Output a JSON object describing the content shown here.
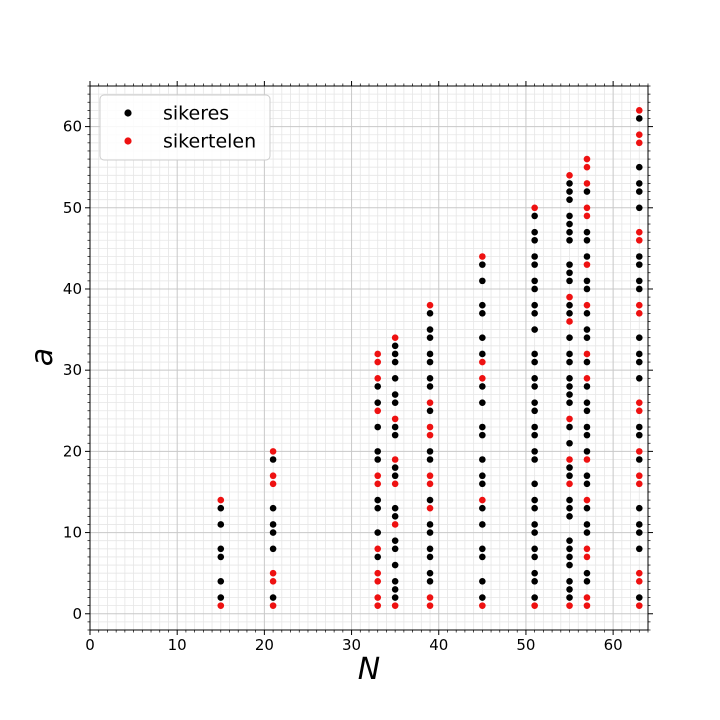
{
  "chart_data": {
    "type": "scatter",
    "xlabel": "N",
    "ylabel": "a",
    "xlim": [
      0,
      64
    ],
    "ylim": [
      -2,
      65
    ],
    "x_ticks": [
      0,
      10,
      20,
      30,
      40,
      50,
      60
    ],
    "y_ticks": [
      0,
      10,
      20,
      30,
      40,
      50,
      60
    ],
    "grid": true,
    "minor_grid": true,
    "legend_position": "top-left",
    "series": [
      {
        "name": "sikeres",
        "color": "#000000",
        "points": [
          [
            15,
            2
          ],
          [
            15,
            4
          ],
          [
            15,
            7
          ],
          [
            15,
            8
          ],
          [
            15,
            11
          ],
          [
            15,
            13
          ],
          [
            21,
            2
          ],
          [
            21,
            8
          ],
          [
            21,
            10
          ],
          [
            21,
            11
          ],
          [
            21,
            13
          ],
          [
            21,
            19
          ],
          [
            33,
            7
          ],
          [
            33,
            10
          ],
          [
            33,
            13
          ],
          [
            33,
            14
          ],
          [
            33,
            19
          ],
          [
            33,
            20
          ],
          [
            33,
            23
          ],
          [
            33,
            26
          ],
          [
            33,
            28
          ],
          [
            35,
            2
          ],
          [
            35,
            3
          ],
          [
            35,
            4
          ],
          [
            35,
            6
          ],
          [
            35,
            8
          ],
          [
            35,
            9
          ],
          [
            35,
            12
          ],
          [
            35,
            13
          ],
          [
            35,
            17
          ],
          [
            35,
            18
          ],
          [
            35,
            22
          ],
          [
            35,
            23
          ],
          [
            35,
            26
          ],
          [
            35,
            27
          ],
          [
            35,
            29
          ],
          [
            35,
            31
          ],
          [
            35,
            32
          ],
          [
            35,
            33
          ],
          [
            39,
            4
          ],
          [
            39,
            5
          ],
          [
            39,
            7
          ],
          [
            39,
            8
          ],
          [
            39,
            10
          ],
          [
            39,
            11
          ],
          [
            39,
            14
          ],
          [
            39,
            19
          ],
          [
            39,
            20
          ],
          [
            39,
            25
          ],
          [
            39,
            28
          ],
          [
            39,
            29
          ],
          [
            39,
            31
          ],
          [
            39,
            32
          ],
          [
            39,
            34
          ],
          [
            39,
            35
          ],
          [
            39,
            37
          ],
          [
            45,
            2
          ],
          [
            45,
            4
          ],
          [
            45,
            7
          ],
          [
            45,
            8
          ],
          [
            45,
            11
          ],
          [
            45,
            13
          ],
          [
            45,
            16
          ],
          [
            45,
            17
          ],
          [
            45,
            19
          ],
          [
            45,
            22
          ],
          [
            45,
            23
          ],
          [
            45,
            26
          ],
          [
            45,
            28
          ],
          [
            45,
            32
          ],
          [
            45,
            34
          ],
          [
            45,
            37
          ],
          [
            45,
            38
          ],
          [
            45,
            41
          ],
          [
            45,
            43
          ],
          [
            51,
            2
          ],
          [
            51,
            4
          ],
          [
            51,
            5
          ],
          [
            51,
            7
          ],
          [
            51,
            8
          ],
          [
            51,
            10
          ],
          [
            51,
            11
          ],
          [
            51,
            13
          ],
          [
            51,
            14
          ],
          [
            51,
            16
          ],
          [
            51,
            19
          ],
          [
            51,
            20
          ],
          [
            51,
            22
          ],
          [
            51,
            23
          ],
          [
            51,
            25
          ],
          [
            51,
            26
          ],
          [
            51,
            28
          ],
          [
            51,
            29
          ],
          [
            51,
            31
          ],
          [
            51,
            32
          ],
          [
            51,
            35
          ],
          [
            51,
            37
          ],
          [
            51,
            38
          ],
          [
            51,
            40
          ],
          [
            51,
            41
          ],
          [
            51,
            43
          ],
          [
            51,
            44
          ],
          [
            51,
            46
          ],
          [
            51,
            47
          ],
          [
            51,
            49
          ],
          [
            55,
            2
          ],
          [
            55,
            3
          ],
          [
            55,
            4
          ],
          [
            55,
            6
          ],
          [
            55,
            7
          ],
          [
            55,
            8
          ],
          [
            55,
            9
          ],
          [
            55,
            12
          ],
          [
            55,
            13
          ],
          [
            55,
            14
          ],
          [
            55,
            17
          ],
          [
            55,
            18
          ],
          [
            55,
            21
          ],
          [
            55,
            23
          ],
          [
            55,
            26
          ],
          [
            55,
            27
          ],
          [
            55,
            28
          ],
          [
            55,
            29
          ],
          [
            55,
            31
          ],
          [
            55,
            32
          ],
          [
            55,
            34
          ],
          [
            55,
            37
          ],
          [
            55,
            38
          ],
          [
            55,
            41
          ],
          [
            55,
            42
          ],
          [
            55,
            43
          ],
          [
            55,
            46
          ],
          [
            55,
            47
          ],
          [
            55,
            48
          ],
          [
            55,
            49
          ],
          [
            55,
            51
          ],
          [
            55,
            52
          ],
          [
            55,
            53
          ],
          [
            57,
            4
          ],
          [
            57,
            5
          ],
          [
            57,
            10
          ],
          [
            57,
            11
          ],
          [
            57,
            13
          ],
          [
            57,
            16
          ],
          [
            57,
            17
          ],
          [
            57,
            20
          ],
          [
            57,
            22
          ],
          [
            57,
            23
          ],
          [
            57,
            25
          ],
          [
            57,
            26
          ],
          [
            57,
            28
          ],
          [
            57,
            31
          ],
          [
            57,
            34
          ],
          [
            57,
            35
          ],
          [
            57,
            37
          ],
          [
            57,
            40
          ],
          [
            57,
            41
          ],
          [
            57,
            44
          ],
          [
            57,
            46
          ],
          [
            57,
            47
          ],
          [
            57,
            52
          ],
          [
            63,
            2
          ],
          [
            63,
            8
          ],
          [
            63,
            10
          ],
          [
            63,
            11
          ],
          [
            63,
            13
          ],
          [
            63,
            19
          ],
          [
            63,
            22
          ],
          [
            63,
            23
          ],
          [
            63,
            29
          ],
          [
            63,
            31
          ],
          [
            63,
            32
          ],
          [
            63,
            34
          ],
          [
            63,
            40
          ],
          [
            63,
            41
          ],
          [
            63,
            43
          ],
          [
            63,
            44
          ],
          [
            63,
            50
          ],
          [
            63,
            52
          ],
          [
            63,
            53
          ],
          [
            63,
            55
          ],
          [
            63,
            61
          ]
        ]
      },
      {
        "name": "sikertelen",
        "color": "#ee1111",
        "points": [
          [
            15,
            1
          ],
          [
            15,
            14
          ],
          [
            21,
            1
          ],
          [
            21,
            4
          ],
          [
            21,
            5
          ],
          [
            21,
            16
          ],
          [
            21,
            17
          ],
          [
            21,
            20
          ],
          [
            33,
            1
          ],
          [
            33,
            2
          ],
          [
            33,
            4
          ],
          [
            33,
            5
          ],
          [
            33,
            8
          ],
          [
            33,
            16
          ],
          [
            33,
            17
          ],
          [
            33,
            25
          ],
          [
            33,
            29
          ],
          [
            33,
            31
          ],
          [
            33,
            32
          ],
          [
            35,
            1
          ],
          [
            35,
            11
          ],
          [
            35,
            16
          ],
          [
            35,
            19
          ],
          [
            35,
            24
          ],
          [
            35,
            34
          ],
          [
            39,
            1
          ],
          [
            39,
            2
          ],
          [
            39,
            13
          ],
          [
            39,
            16
          ],
          [
            39,
            17
          ],
          [
            39,
            22
          ],
          [
            39,
            23
          ],
          [
            39,
            26
          ],
          [
            39,
            38
          ],
          [
            45,
            1
          ],
          [
            45,
            14
          ],
          [
            45,
            29
          ],
          [
            45,
            31
          ],
          [
            45,
            44
          ],
          [
            51,
            1
          ],
          [
            51,
            50
          ],
          [
            55,
            1
          ],
          [
            55,
            16
          ],
          [
            55,
            19
          ],
          [
            55,
            24
          ],
          [
            55,
            36
          ],
          [
            55,
            39
          ],
          [
            55,
            54
          ],
          [
            57,
            1
          ],
          [
            57,
            2
          ],
          [
            57,
            7
          ],
          [
            57,
            8
          ],
          [
            57,
            14
          ],
          [
            57,
            19
          ],
          [
            57,
            29
          ],
          [
            57,
            32
          ],
          [
            57,
            38
          ],
          [
            57,
            43
          ],
          [
            57,
            49
          ],
          [
            57,
            50
          ],
          [
            57,
            53
          ],
          [
            57,
            55
          ],
          [
            57,
            56
          ],
          [
            63,
            1
          ],
          [
            63,
            4
          ],
          [
            63,
            5
          ],
          [
            63,
            16
          ],
          [
            63,
            17
          ],
          [
            63,
            20
          ],
          [
            63,
            25
          ],
          [
            63,
            26
          ],
          [
            63,
            37
          ],
          [
            63,
            38
          ],
          [
            63,
            46
          ],
          [
            63,
            47
          ],
          [
            63,
            58
          ],
          [
            63,
            59
          ],
          [
            63,
            62
          ]
        ]
      }
    ]
  }
}
